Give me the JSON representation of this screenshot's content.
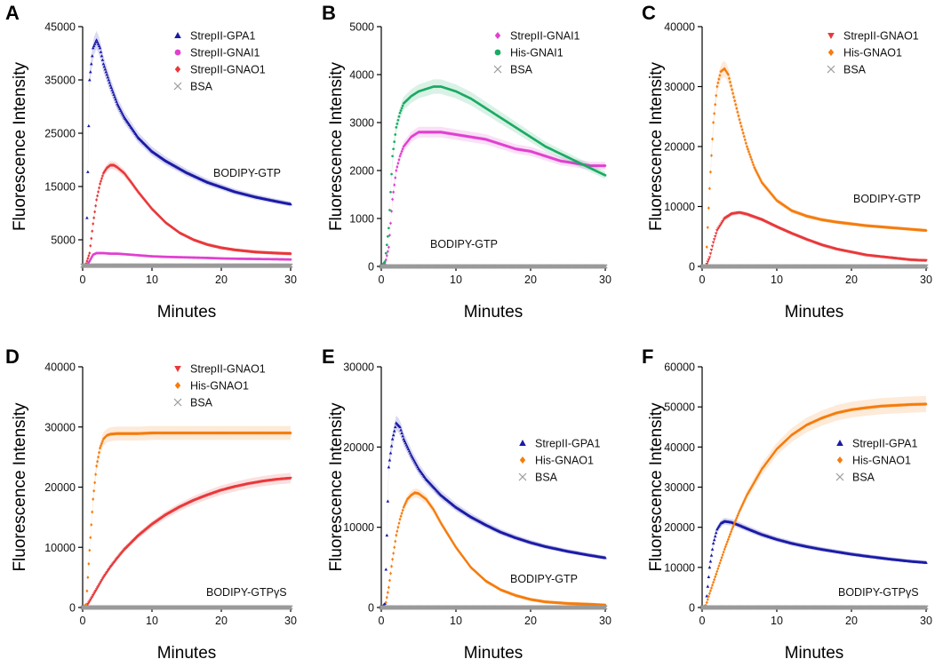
{
  "colors": {
    "blue": "#1a1aa6",
    "magenta": "#e040d0",
    "red": "#e8383a",
    "green": "#1aab63",
    "orange": "#f57c0d",
    "gray": "#9a9a9a"
  },
  "chart_data": [
    {
      "type": "scatter",
      "letter": "A",
      "xlabel": "Minutes",
      "ylabel": "Fluorescence Intensity",
      "xlim": [
        0,
        30
      ],
      "ylim": [
        0,
        45000
      ],
      "xticks": [
        0,
        10,
        20,
        30
      ],
      "yticks": [
        5000,
        15000,
        25000,
        35000,
        45000
      ],
      "ytick_labels": [
        "5000",
        "15000",
        "25000",
        "35000",
        "45000"
      ],
      "annotation": "BODIPY-GTP",
      "legend_position": "top-right",
      "series": [
        {
          "name": "StrepII-GPA1",
          "marker": "triangle",
          "color": "#1a1aa6",
          "x": [
            0,
            0.5,
            1,
            1.5,
            2,
            2.5,
            3,
            4,
            5,
            6,
            8,
            10,
            12,
            15,
            18,
            20,
            22,
            25,
            28,
            30
          ],
          "y": [
            0,
            500,
            35000,
            41000,
            42500,
            41000,
            38000,
            34000,
            30500,
            28000,
            24200,
            21600,
            19800,
            17600,
            15800,
            14900,
            14000,
            13000,
            12200,
            11700
          ]
        },
        {
          "name": "StrepII-GNAI1",
          "marker": "circle",
          "color": "#e040d0",
          "x": [
            0,
            0.5,
            1,
            1.5,
            2,
            3,
            4,
            5,
            6,
            8,
            10,
            12,
            15,
            18,
            20,
            22,
            25,
            28,
            30
          ],
          "y": [
            0,
            0,
            1000,
            2200,
            2500,
            2500,
            2400,
            2400,
            2300,
            2100,
            1900,
            1800,
            1700,
            1600,
            1500,
            1450,
            1400,
            1350,
            1300
          ]
        },
        {
          "name": "StrepII-GNAO1",
          "marker": "diamond",
          "color": "#e8383a",
          "x": [
            0,
            0.5,
            1,
            1.5,
            2,
            2.5,
            3,
            3.5,
            4,
            4.5,
            5,
            6,
            7,
            8,
            10,
            12,
            14,
            16,
            18,
            20,
            22,
            25,
            28,
            30
          ],
          "y": [
            0,
            500,
            2500,
            8000,
            12500,
            15500,
            17500,
            18500,
            19000,
            19000,
            18600,
            17500,
            15800,
            14000,
            10800,
            8200,
            6300,
            5000,
            4100,
            3500,
            3100,
            2700,
            2500,
            2400
          ]
        },
        {
          "name": "BSA",
          "marker": "x",
          "color": "#9a9a9a",
          "x": [
            0,
            5,
            10,
            15,
            20,
            25,
            30
          ],
          "y": [
            150,
            150,
            150,
            150,
            150,
            150,
            150
          ]
        }
      ]
    },
    {
      "type": "scatter",
      "letter": "B",
      "xlabel": "Minutes",
      "ylabel": "Fluorescence Intensity",
      "xlim": [
        0,
        30
      ],
      "ylim": [
        0,
        5000
      ],
      "xticks": [
        0,
        10,
        20,
        30
      ],
      "yticks": [
        0,
        1000,
        2000,
        3000,
        4000,
        5000
      ],
      "ytick_labels": [
        "0",
        "1000",
        "2000",
        "3000",
        "4000",
        "5000"
      ],
      "annotation": "BODIPY-GTP",
      "legend_position": "top-right",
      "series": [
        {
          "name": "StrepII-GNAI1",
          "marker": "diamond",
          "color": "#e040d0",
          "x": [
            0,
            0.5,
            1,
            1.5,
            2,
            2.5,
            3,
            4,
            5,
            6,
            8,
            10,
            12,
            14,
            16,
            18,
            20,
            22,
            24,
            26,
            28,
            30
          ],
          "y": [
            0,
            50,
            400,
            1400,
            2000,
            2300,
            2500,
            2700,
            2800,
            2800,
            2800,
            2750,
            2700,
            2650,
            2550,
            2450,
            2400,
            2300,
            2200,
            2150,
            2100,
            2100
          ]
        },
        {
          "name": "His-GNAI1",
          "marker": "circle",
          "color": "#1aab63",
          "x": [
            0,
            0.5,
            1,
            1.5,
            2,
            2.5,
            3,
            4,
            5,
            6,
            7,
            8,
            10,
            12,
            14,
            16,
            18,
            20,
            22,
            24,
            26,
            28,
            30
          ],
          "y": [
            0,
            100,
            800,
            2300,
            2900,
            3200,
            3400,
            3550,
            3650,
            3700,
            3750,
            3750,
            3650,
            3500,
            3300,
            3100,
            2900,
            2700,
            2500,
            2350,
            2200,
            2050,
            1900
          ]
        },
        {
          "name": "BSA",
          "marker": "x",
          "color": "#9a9a9a",
          "x": [
            0,
            5,
            10,
            15,
            20,
            25,
            30
          ],
          "y": [
            0,
            0,
            0,
            0,
            0,
            0,
            0
          ]
        }
      ]
    },
    {
      "type": "scatter",
      "letter": "C",
      "xlabel": "Minutes",
      "ylabel": "Fluorescence Intensity",
      "xlim": [
        0,
        30
      ],
      "ylim": [
        0,
        40000
      ],
      "xticks": [
        0,
        10,
        20,
        30
      ],
      "yticks": [
        0,
        10000,
        20000,
        30000,
        40000
      ],
      "ytick_labels": [
        "0",
        "10000",
        "20000",
        "30000",
        "40000"
      ],
      "annotation": "BODIPY-GTP",
      "legend_position": "top-right",
      "series": [
        {
          "name": "StrepII-GNAO1",
          "marker": "triangle-down",
          "color": "#e8383a",
          "x": [
            0,
            0.5,
            1,
            1.5,
            2,
            3,
            4,
            5,
            6,
            8,
            10,
            12,
            14,
            16,
            18,
            20,
            22,
            25,
            28,
            30
          ],
          "y": [
            0,
            0,
            1500,
            4000,
            6000,
            8000,
            8800,
            9000,
            8700,
            7800,
            6600,
            5500,
            4500,
            3600,
            2900,
            2400,
            1900,
            1500,
            1100,
            1000
          ]
        },
        {
          "name": "His-GNAO1",
          "marker": "diamond",
          "color": "#f57c0d",
          "x": [
            0,
            0.5,
            1,
            1.5,
            2,
            2.5,
            3,
            3.5,
            4,
            5,
            6,
            7,
            8,
            10,
            12,
            14,
            16,
            18,
            20,
            22,
            25,
            28,
            30
          ],
          "y": [
            0,
            0,
            13000,
            24000,
            30000,
            32500,
            33000,
            32000,
            29500,
            24500,
            20000,
            16500,
            14000,
            11000,
            9300,
            8400,
            7800,
            7400,
            7100,
            6800,
            6500,
            6200,
            6000
          ]
        },
        {
          "name": "BSA",
          "marker": "x",
          "color": "#9a9a9a",
          "x": [
            0,
            5,
            10,
            15,
            20,
            25,
            30
          ],
          "y": [
            0,
            0,
            0,
            0,
            0,
            0,
            0
          ]
        }
      ]
    },
    {
      "type": "scatter",
      "letter": "D",
      "xlabel": "Minutes",
      "ylabel": "Fluorescence Intensity",
      "xlim": [
        0,
        30
      ],
      "ylim": [
        0,
        40000
      ],
      "xticks": [
        0,
        10,
        20,
        30
      ],
      "yticks": [
        0,
        10000,
        20000,
        30000,
        40000
      ],
      "ytick_labels": [
        "0",
        "10000",
        "20000",
        "30000",
        "40000"
      ],
      "annotation": "BODIPY-GTPγS",
      "legend_position": "top-right",
      "series": [
        {
          "name": "StrepII-GNAO1",
          "marker": "triangle-down",
          "color": "#e8383a",
          "x": [
            0,
            0.5,
            1,
            1.5,
            2,
            3,
            4,
            5,
            6,
            8,
            10,
            12,
            14,
            16,
            18,
            20,
            22,
            24,
            26,
            28,
            30
          ],
          "y": [
            0,
            100,
            1000,
            2000,
            3000,
            5000,
            6700,
            8200,
            9600,
            11900,
            13800,
            15400,
            16700,
            17800,
            18700,
            19500,
            20100,
            20600,
            21000,
            21300,
            21500
          ]
        },
        {
          "name": "His-GNAO1",
          "marker": "diamond",
          "color": "#f57c0d",
          "x": [
            0,
            0.5,
            1,
            1.5,
            2,
            2.5,
            3,
            3.5,
            4,
            5,
            6,
            8,
            10,
            15,
            20,
            25,
            30
          ],
          "y": [
            0,
            500,
            9500,
            18000,
            23500,
            26500,
            28000,
            28600,
            28800,
            28900,
            28900,
            28900,
            29000,
            29000,
            29000,
            29000,
            29000
          ]
        },
        {
          "name": "BSA",
          "marker": "x",
          "color": "#9a9a9a",
          "x": [
            0,
            5,
            10,
            15,
            20,
            25,
            30
          ],
          "y": [
            0,
            0,
            0,
            0,
            0,
            0,
            0
          ]
        }
      ]
    },
    {
      "type": "scatter",
      "letter": "E",
      "xlabel": "Minutes",
      "ylabel": "Fluorescence Intensity",
      "xlim": [
        0,
        30
      ],
      "ylim": [
        0,
        30000
      ],
      "xticks": [
        0,
        10,
        20,
        30
      ],
      "yticks": [
        0,
        10000,
        20000,
        30000
      ],
      "ytick_labels": [
        "0",
        "10000",
        "20000",
        "30000"
      ],
      "annotation": "BODIPY-GTP",
      "legend_position": "right",
      "series": [
        {
          "name": "StrepII-GPA1",
          "marker": "triangle",
          "color": "#1a1aa6",
          "x": [
            0,
            0.5,
            1,
            1.5,
            2,
            2.5,
            3,
            4,
            5,
            6,
            8,
            10,
            12,
            14,
            16,
            18,
            20,
            22,
            25,
            28,
            30
          ],
          "y": [
            0,
            500,
            17500,
            21000,
            23000,
            22500,
            21000,
            19000,
            17300,
            16000,
            14000,
            12500,
            11300,
            10300,
            9400,
            8700,
            8100,
            7600,
            7000,
            6500,
            6200
          ]
        },
        {
          "name": "His-GNAO1",
          "marker": "diamond",
          "color": "#f57c0d",
          "x": [
            0,
            0.5,
            1,
            1.5,
            2,
            2.5,
            3,
            3.5,
            4,
            4.5,
            5,
            6,
            7,
            8,
            10,
            12,
            14,
            16,
            18,
            20,
            22,
            25,
            28,
            30
          ],
          "y": [
            0,
            0,
            2500,
            6000,
            9000,
            11000,
            12500,
            13500,
            14000,
            14300,
            14200,
            13500,
            12200,
            10500,
            7500,
            5000,
            3300,
            2200,
            1500,
            1000,
            700,
            500,
            400,
            300
          ]
        },
        {
          "name": "BSA",
          "marker": "x",
          "color": "#9a9a9a",
          "x": [
            0,
            5,
            10,
            15,
            20,
            25,
            30
          ],
          "y": [
            0,
            0,
            0,
            0,
            0,
            0,
            0
          ]
        }
      ]
    },
    {
      "type": "scatter",
      "letter": "F",
      "xlabel": "Minutes",
      "ylabel": "Fluorescence Intensity",
      "xlim": [
        0,
        30
      ],
      "ylim": [
        0,
        60000
      ],
      "xticks": [
        0,
        10,
        20,
        30
      ],
      "yticks": [
        0,
        10000,
        20000,
        30000,
        40000,
        50000,
        60000
      ],
      "ytick_labels": [
        "0",
        "10000",
        "20000",
        "30000",
        "40000",
        "50000",
        "60000"
      ],
      "annotation": "BODIPY-GTPγS",
      "legend_position": "right",
      "series": [
        {
          "name": "StrepII-GPA1",
          "marker": "triangle",
          "color": "#1a1aa6",
          "x": [
            0,
            0.5,
            1,
            1.5,
            2,
            2.5,
            3,
            4,
            5,
            6,
            8,
            10,
            12,
            14,
            16,
            18,
            20,
            22,
            25,
            28,
            30
          ],
          "y": [
            0,
            500,
            10000,
            16000,
            19500,
            21000,
            21500,
            21200,
            20500,
            19700,
            18200,
            17000,
            16000,
            15200,
            14500,
            13900,
            13300,
            12800,
            12100,
            11500,
            11200
          ]
        },
        {
          "name": "His-GNAO1",
          "marker": "diamond",
          "color": "#f57c0d",
          "x": [
            0,
            0.5,
            1,
            2,
            3,
            4,
            5,
            6,
            8,
            10,
            12,
            14,
            16,
            18,
            20,
            22,
            24,
            26,
            28,
            30
          ],
          "y": [
            0,
            500,
            3500,
            9000,
            14500,
            19500,
            24000,
            28000,
            34500,
            39500,
            43000,
            45500,
            47200,
            48500,
            49300,
            49800,
            50200,
            50400,
            50600,
            50700
          ]
        },
        {
          "name": "BSA",
          "marker": "x",
          "color": "#9a9a9a",
          "x": [
            0,
            5,
            10,
            15,
            20,
            25,
            30
          ],
          "y": [
            0,
            0,
            0,
            0,
            0,
            0,
            0
          ]
        }
      ]
    }
  ]
}
